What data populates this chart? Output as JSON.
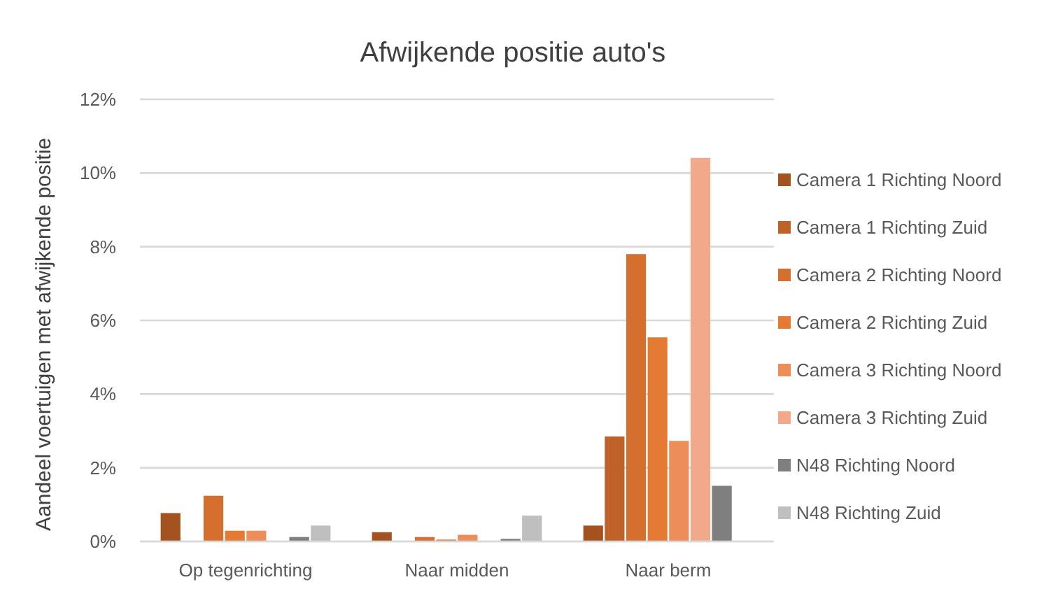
{
  "chart_data": {
    "type": "bar",
    "title": "Afwijkende positie auto's",
    "ylabel": "Aandeel voertuigen met afwijkende positie",
    "categories": [
      "Op tegenrichting",
      "Naar midden",
      "Naar berm"
    ],
    "series": [
      {
        "name": "Camera 1 Richting Noord",
        "color": "#a4521f",
        "values": [
          0.77,
          0.25,
          0.43
        ]
      },
      {
        "name": "Camera 1 Richting Zuid",
        "color": "#c06127",
        "values": [
          0,
          0,
          2.85
        ]
      },
      {
        "name": "Camera 2 Richting Noord",
        "color": "#d46f2d",
        "values": [
          1.24,
          0.12,
          7.8
        ]
      },
      {
        "name": "Camera 2 Richting Zuid",
        "color": "#e57a34",
        "values": [
          0.29,
          0.05,
          5.54
        ]
      },
      {
        "name": "Camera 3 Richting Noord",
        "color": "#ed8d5a",
        "values": [
          0.29,
          0.18,
          2.73
        ]
      },
      {
        "name": "Camera 3 Richting Zuid",
        "color": "#f2a88a",
        "values": [
          0,
          0,
          10.41
        ]
      },
      {
        "name": "N48 Richting Noord",
        "color": "#7f7f7f",
        "values": [
          0.12,
          0.07,
          1.51
        ]
      },
      {
        "name": "N48 Richting Zuid",
        "color": "#bfbfbf",
        "values": [
          0.43,
          0.7,
          0
        ]
      }
    ],
    "ylim": [
      0,
      12
    ],
    "yticks": [
      {
        "value": 0,
        "label": "0%"
      },
      {
        "value": 2,
        "label": "2%"
      },
      {
        "value": 4,
        "label": "4%"
      },
      {
        "value": 6,
        "label": "6%"
      },
      {
        "value": 8,
        "label": "8%"
      },
      {
        "value": 10,
        "label": "10%"
      },
      {
        "value": 12,
        "label": "12%"
      }
    ],
    "grid": "y",
    "legend": "right"
  }
}
